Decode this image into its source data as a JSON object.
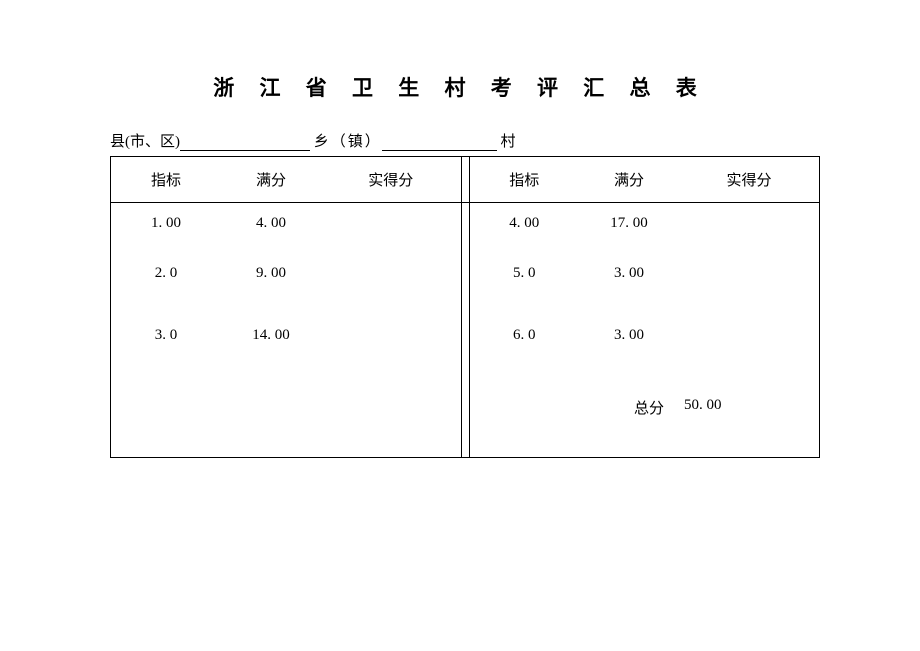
{
  "title": "浙 江 省 卫 生 村 考 评 汇 总 表",
  "subheader": {
    "county_label": "县(市、区)",
    "township_label": "乡（镇）",
    "village_label": "村"
  },
  "headers": {
    "indicator": "指标",
    "full_score": "满分",
    "actual_score": "实得分"
  },
  "left_rows": [
    {
      "indicator": "1. 00",
      "full_score": "4. 00",
      "actual": ""
    },
    {
      "indicator": "2. 0",
      "full_score": "9. 00",
      "actual": ""
    },
    {
      "indicator": "3. 0",
      "full_score": "14. 00",
      "actual": ""
    }
  ],
  "right_rows": [
    {
      "indicator": "4. 00",
      "full_score": "17. 00",
      "actual": ""
    },
    {
      "indicator": "5. 0",
      "full_score": "3. 00",
      "actual": ""
    },
    {
      "indicator": "6. 0",
      "full_score": "3. 00",
      "actual": ""
    }
  ],
  "total": {
    "label": "总分",
    "value": "50. 00"
  }
}
